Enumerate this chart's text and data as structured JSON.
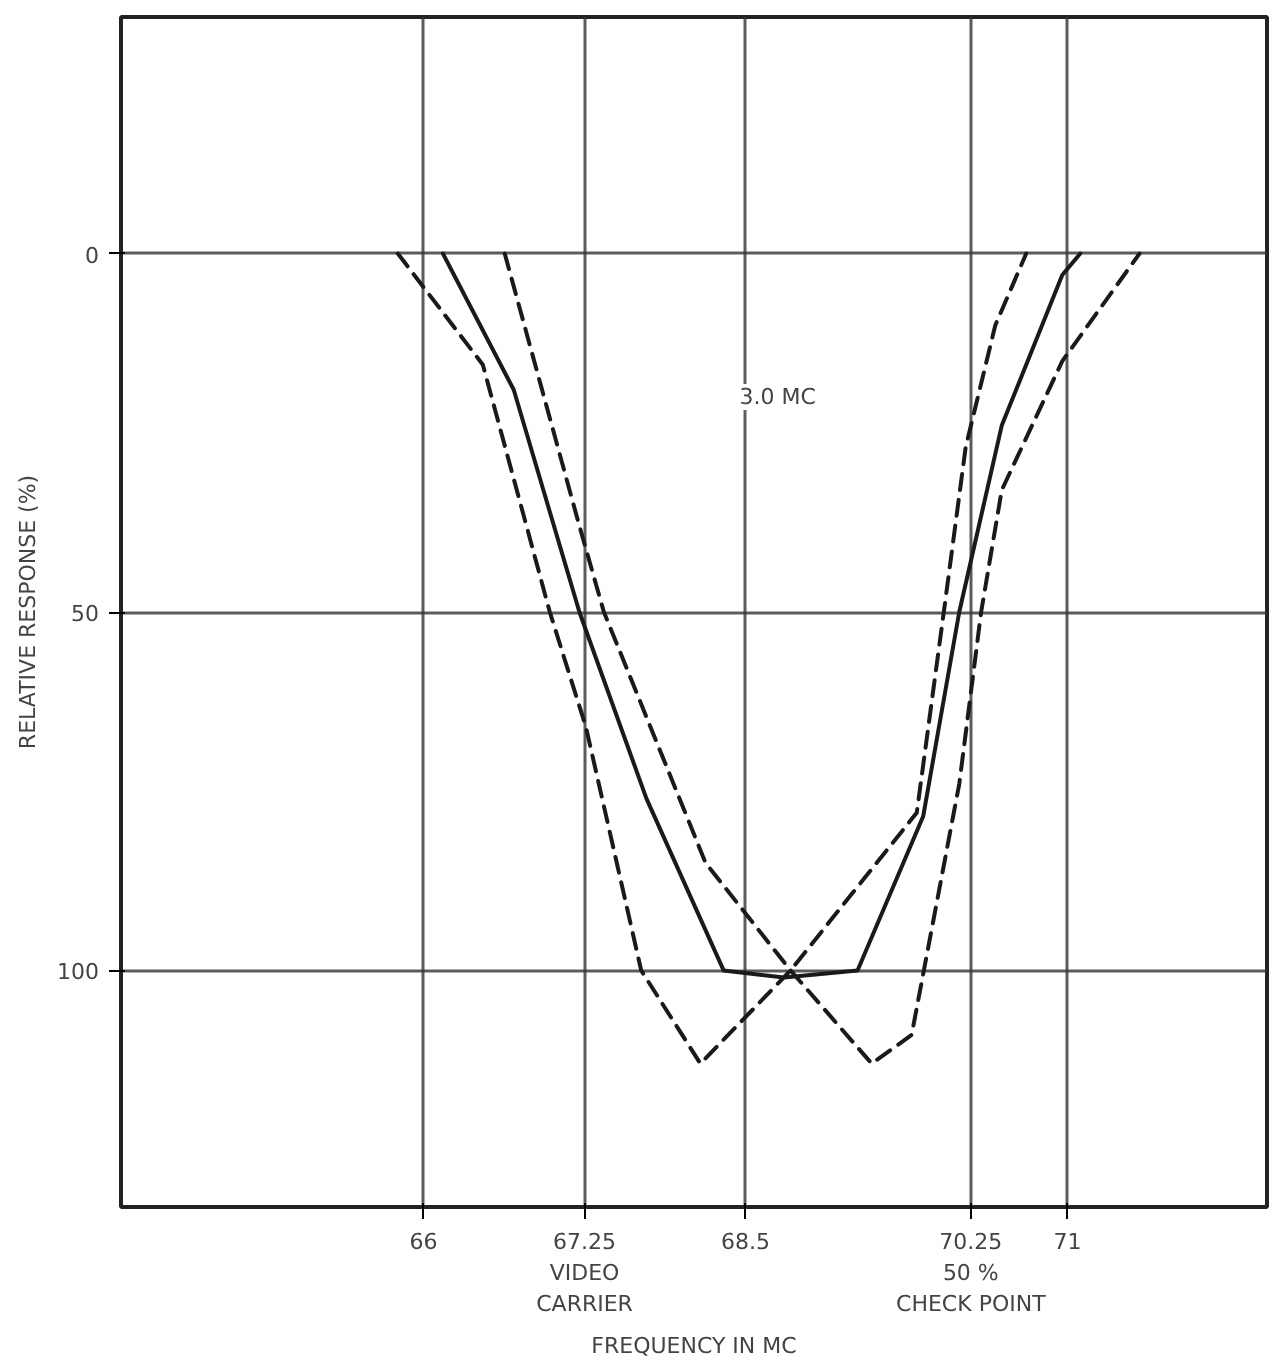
{
  "chart_data": {
    "type": "line",
    "xlabel": "FREQUENCY IN MC",
    "ylabel": "RELATIVE RESPONSE (%)",
    "xlim": [
      63.65,
      72.55
    ],
    "ylim": [
      133,
      -33
    ],
    "xticks": [
      66,
      {
        "value": 67.25,
        "label": "67.25\nVIDEO\nCARRIER"
      },
      68.5,
      {
        "value": 70.25,
        "label": "70.25\n50 %\nCHECK POINT"
      },
      71
    ],
    "yticks": [
      0,
      50,
      100
    ],
    "grid": true,
    "marker": "none",
    "annotations": [
      {
        "text": "3.0 MC",
        "x": 68.75,
        "y": 20
      }
    ],
    "series": [
      {
        "color": "#1a1a1a",
        "line_style": "solid",
        "x": [
          66.15,
          66.7,
          67.21,
          67.73,
          68.33,
          68.8,
          69.37,
          69.88,
          70.16,
          70.49,
          70.96,
          71.1
        ],
        "values": [
          0,
          19,
          50,
          76,
          100,
          101,
          100,
          78.5,
          50,
          24,
          3,
          0
        ]
      },
      {
        "color": "#1a1a1a",
        "line_style": "dashed",
        "x": [
          65.8,
          66.46,
          66.98,
          67.26,
          67.69,
          68.15,
          68.85,
          69.83,
          70.04,
          70.21,
          70.44,
          70.68
        ],
        "values": [
          0,
          15.5,
          50,
          66,
          100,
          113,
          100,
          78,
          50,
          27,
          10,
          0
        ]
      },
      {
        "color": "#1a1a1a",
        "line_style": "dashed",
        "x": [
          66.63,
          67.21,
          67.4,
          68.19,
          68.85,
          69.48,
          69.79,
          70.16,
          70.33,
          70.49,
          70.96,
          71.56
        ],
        "values": [
          0,
          38,
          50,
          85,
          100,
          113,
          109,
          74,
          50,
          33,
          15,
          0
        ]
      }
    ]
  }
}
